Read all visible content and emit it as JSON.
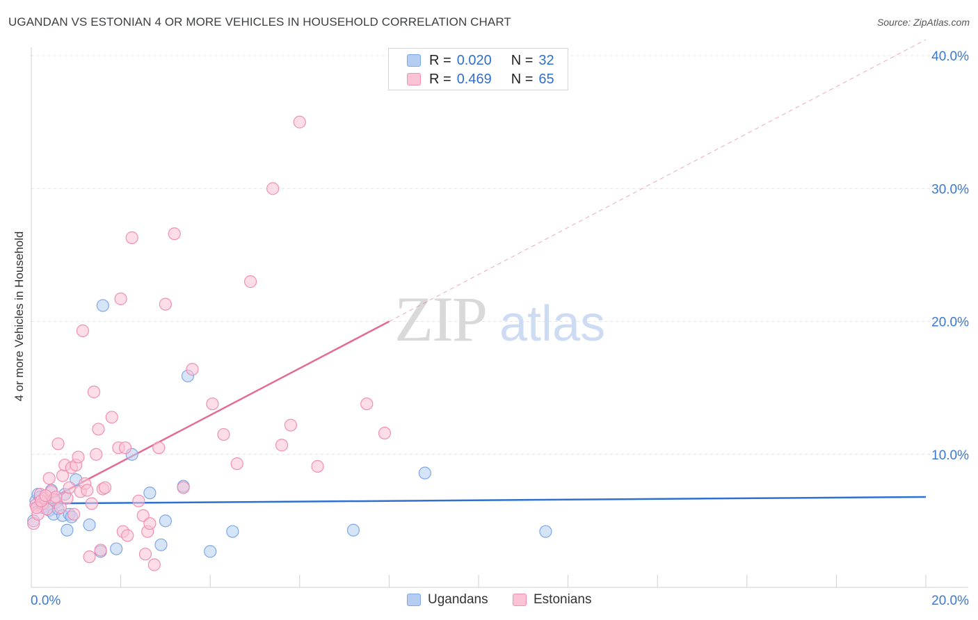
{
  "title": "UGANDAN VS ESTONIAN 4 OR MORE VEHICLES IN HOUSEHOLD CORRELATION CHART",
  "source": "Source: ZipAtlas.com",
  "watermark": {
    "zip": "ZIP",
    "atlas": "atlas"
  },
  "legend": {
    "r_label": "R =",
    "n_label": "N =",
    "rows": [
      {
        "series": "Ugandans",
        "r": "0.020",
        "n": "32",
        "color": "#b5cdf3"
      },
      {
        "series": "Estonians",
        "r": "0.469",
        "n": "65",
        "color": "#fcc3d6"
      }
    ]
  },
  "bottom_legend": [
    "Ugandans",
    "Estonians"
  ],
  "chart_data": {
    "type": "scatter",
    "title": "UGANDAN VS ESTONIAN 4 OR MORE VEHICLES IN HOUSEHOLD CORRELATION CHART",
    "xlabel": "",
    "ylabel": "4 or more Vehicles in Household",
    "xlim": [
      0,
      20
    ],
    "ylim": [
      0,
      40
    ],
    "x_tick_labels": [
      {
        "value": 0,
        "label": "0.0%"
      },
      {
        "value": 20,
        "label": "20.0%"
      }
    ],
    "y_tick_labels": [
      {
        "value": 10,
        "label": "10.0%"
      },
      {
        "value": 20,
        "label": "20.0%"
      },
      {
        "value": 30,
        "label": "30.0%"
      },
      {
        "value": 40,
        "label": "40.0%"
      }
    ],
    "series": [
      {
        "name": "Ugandans",
        "color": "#2f6fd0",
        "fill": "#b5cdf3",
        "stroke": "#7ea7e8",
        "r": 0.02,
        "n": 32,
        "points": [
          [
            0.05,
            5.0
          ],
          [
            0.1,
            6.5
          ],
          [
            0.15,
            7.0
          ],
          [
            0.2,
            6.8
          ],
          [
            0.25,
            6.0
          ],
          [
            0.3,
            6.3
          ],
          [
            0.4,
            5.8
          ],
          [
            0.45,
            7.3
          ],
          [
            0.5,
            5.5
          ],
          [
            0.55,
            6.4
          ],
          [
            0.6,
            5.9
          ],
          [
            0.7,
            5.4
          ],
          [
            0.75,
            7.0
          ],
          [
            0.8,
            4.3
          ],
          [
            0.85,
            5.5
          ],
          [
            0.9,
            5.3
          ],
          [
            1.0,
            8.1
          ],
          [
            1.3,
            4.7
          ],
          [
            1.55,
            2.7
          ],
          [
            1.6,
            21.2
          ],
          [
            1.9,
            2.9
          ],
          [
            2.25,
            10.0
          ],
          [
            2.65,
            7.1
          ],
          [
            2.9,
            3.2
          ],
          [
            3.0,
            5.0
          ],
          [
            3.4,
            7.6
          ],
          [
            3.5,
            15.9
          ],
          [
            4.0,
            2.7
          ],
          [
            4.5,
            4.2
          ],
          [
            7.2,
            4.3
          ],
          [
            8.8,
            8.6
          ],
          [
            11.5,
            4.2
          ]
        ]
      },
      {
        "name": "Estonians",
        "color": "#e46a96",
        "fill": "#fcc3d6",
        "stroke": "#f08fb0",
        "r": 0.469,
        "n": 65,
        "points": [
          [
            0.05,
            4.8
          ],
          [
            0.1,
            6.2
          ],
          [
            0.15,
            5.5
          ],
          [
            0.2,
            7.0
          ],
          [
            0.25,
            6.3
          ],
          [
            0.3,
            6.7
          ],
          [
            0.35,
            5.9
          ],
          [
            0.4,
            8.2
          ],
          [
            0.45,
            7.2
          ],
          [
            0.5,
            6.6
          ],
          [
            0.55,
            6.8
          ],
          [
            0.6,
            10.8
          ],
          [
            0.7,
            8.4
          ],
          [
            0.75,
            9.2
          ],
          [
            0.8,
            6.7
          ],
          [
            0.85,
            7.5
          ],
          [
            0.9,
            9.0
          ],
          [
            0.95,
            5.5
          ],
          [
            1.0,
            9.2
          ],
          [
            1.05,
            9.8
          ],
          [
            1.1,
            7.2
          ],
          [
            1.15,
            19.3
          ],
          [
            1.2,
            7.8
          ],
          [
            1.25,
            7.3
          ],
          [
            1.3,
            2.3
          ],
          [
            1.35,
            6.3
          ],
          [
            1.4,
            14.7
          ],
          [
            1.45,
            10.0
          ],
          [
            1.5,
            11.9
          ],
          [
            1.55,
            2.8
          ],
          [
            1.6,
            7.4
          ],
          [
            1.65,
            7.5
          ],
          [
            1.8,
            12.8
          ],
          [
            1.95,
            10.5
          ],
          [
            2.0,
            21.7
          ],
          [
            2.05,
            4.2
          ],
          [
            2.1,
            10.5
          ],
          [
            2.15,
            3.9
          ],
          [
            2.25,
            26.3
          ],
          [
            2.4,
            6.5
          ],
          [
            2.5,
            5.4
          ],
          [
            2.55,
            2.5
          ],
          [
            2.6,
            4.2
          ],
          [
            2.65,
            4.8
          ],
          [
            2.75,
            1.7
          ],
          [
            2.85,
            10.5
          ],
          [
            3.0,
            21.3
          ],
          [
            3.2,
            26.6
          ],
          [
            3.4,
            7.5
          ],
          [
            3.6,
            16.4
          ],
          [
            4.05,
            13.8
          ],
          [
            4.3,
            11.5
          ],
          [
            4.6,
            9.3
          ],
          [
            4.9,
            23.0
          ],
          [
            5.4,
            30.0
          ],
          [
            5.6,
            10.7
          ],
          [
            5.8,
            12.2
          ],
          [
            6.0,
            35.0
          ],
          [
            6.4,
            9.1
          ],
          [
            7.5,
            13.8
          ],
          [
            7.9,
            11.6
          ],
          [
            0.12,
            6.0
          ],
          [
            0.22,
            6.5
          ],
          [
            0.32,
            6.9
          ],
          [
            0.65,
            6.0
          ]
        ]
      }
    ],
    "trend_lines": [
      {
        "series": "Ugandans",
        "from": [
          0,
          6.3
        ],
        "to": [
          20,
          6.8
        ],
        "style": "solid"
      },
      {
        "series": "Estonians",
        "from": [
          0,
          5.9
        ],
        "to": [
          8,
          20.0
        ],
        "style": "solid"
      },
      {
        "series": "Estonians",
        "from": [
          8,
          20.0
        ],
        "to": [
          20,
          41.2
        ],
        "style": "dashed"
      }
    ],
    "grid": true,
    "legend_position": "top-center"
  }
}
